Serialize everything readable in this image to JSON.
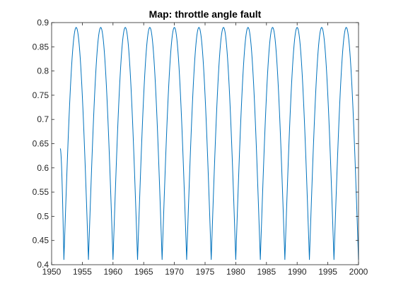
{
  "chart_data": {
    "type": "line",
    "title": "Map: throttle angle fault",
    "xlabel": "",
    "ylabel": "",
    "xlim": [
      1950,
      2000
    ],
    "ylim": [
      0.4,
      0.9
    ],
    "x_ticks": [
      1950,
      1955,
      1960,
      1965,
      1970,
      1975,
      1980,
      1985,
      1990,
      1995,
      2000
    ],
    "y_ticks": [
      0.4,
      0.45,
      0.5,
      0.55,
      0.6,
      0.65,
      0.7,
      0.75,
      0.8,
      0.85,
      0.9
    ],
    "grid": false,
    "legend": "none",
    "colors": {
      "line": "#0072bd",
      "axes": "#262626",
      "background": "#ffffff"
    },
    "series": [
      {
        "x": [
          1951.4,
          1952.0,
          1954.0,
          1956.0,
          1958.0,
          1960.0,
          1962.0,
          1964.0,
          1966.0,
          1968.0,
          1970.0,
          1972.0,
          1974.0,
          1976.0,
          1978.0,
          1980.0,
          1982.0,
          1984.0,
          1986.0,
          1988.0,
          1990.0,
          1992.0,
          1994.0,
          1996.0,
          1998.0,
          2000.0
        ],
        "y": [
          0.64,
          0.41,
          0.89,
          0.41,
          0.89,
          0.41,
          0.89,
          0.41,
          0.89,
          0.41,
          0.89,
          0.41,
          0.89,
          0.41,
          0.89,
          0.41,
          0.89,
          0.41,
          0.89,
          0.41,
          0.89,
          0.41,
          0.89,
          0.41,
          0.89,
          0.41
        ]
      }
    ]
  }
}
